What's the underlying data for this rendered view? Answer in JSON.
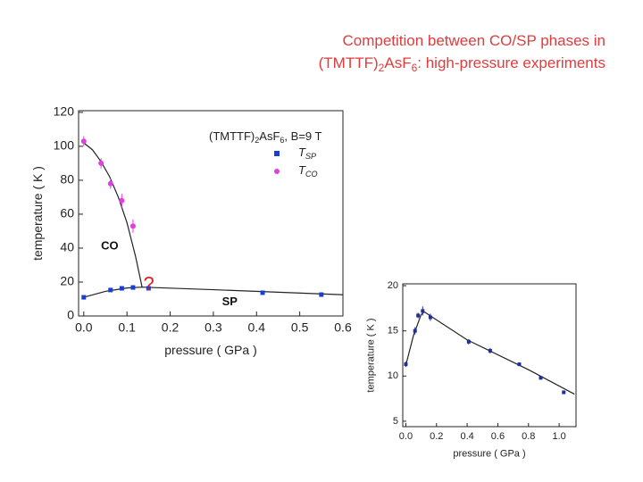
{
  "title": [
    "Competition between CO/SP phases in",
    "(TMTTF)",
    "2",
    "AsF",
    "6",
    ": high-pressure experiments"
  ],
  "chart_data": [
    {
      "type": "scatter",
      "legend_title": [
        "(TMTTF)",
        "2",
        "AsF",
        "6",
        ", B=9 T"
      ],
      "xlabel": "pressure ( GPa )",
      "ylabel": "temperature ( K )",
      "xlim": [
        -0.012,
        0.6
      ],
      "ylim": [
        0,
        121
      ],
      "xticks": [
        {
          "value": 0,
          "label": "0.0"
        },
        0.1,
        0.2,
        0.3,
        0.4,
        0.5,
        0.6
      ],
      "yticks": [
        0,
        20,
        40,
        60,
        80,
        100,
        120
      ],
      "series": [
        {
          "name": "T",
          "name_subscript": "SP",
          "color": "#1a3fd0",
          "marker": "square",
          "x": [
            0.0,
            0.062,
            0.088,
            0.114,
            0.15,
            0.414,
            0.55
          ],
          "values": [
            11,
            15.3,
            16.3,
            16.8,
            16.3,
            13.7,
            12.6
          ],
          "errors": [
            0.6,
            0.6,
            0.6,
            0.6,
            0.6,
            0.6,
            0.6
          ]
        },
        {
          "name": "T",
          "name_subscript": "CO",
          "color": "#e040e0",
          "marker": "circle",
          "x": [
            0.0,
            0.04,
            0.062,
            0.088,
            0.114
          ],
          "values": [
            103,
            90,
            78,
            68,
            53
          ],
          "errors": [
            3,
            3,
            3,
            4,
            4
          ]
        }
      ],
      "fits": [
        {
          "x": [
            0,
            0.02,
            0.04,
            0.06,
            0.08,
            0.1,
            0.12,
            0.135
          ],
          "values": [
            102,
            98,
            91,
            82,
            70,
            55,
            35,
            17
          ]
        },
        {
          "x": [
            0,
            0.05,
            0.1,
            0.135,
            0.3,
            0.6
          ],
          "values": [
            11,
            14.5,
            16.5,
            17,
            15.5,
            12.5
          ]
        }
      ],
      "annotations": [
        "CO",
        "SP",
        "?"
      ]
    },
    {
      "type": "scatter",
      "xlabel": "pressure ( GPa )",
      "ylabel": "temperature ( K )",
      "xlim": [
        -0.02,
        1.11
      ],
      "ylim": [
        4.4,
        20.2
      ],
      "xticks": [
        {
          "value": 0,
          "label": "0.0"
        },
        0.2,
        0.4,
        0.6,
        0.8,
        {
          "value": 1,
          "label": "1.0"
        }
      ],
      "yticks": [
        5,
        10,
        15,
        20
      ],
      "series": [
        {
          "color": "#1f2e9a",
          "marker": "square",
          "x": [
            0,
            0.06,
            0.08,
            0.11,
            0.16,
            0.41,
            0.55,
            0.74,
            0.88,
            1.03
          ],
          "values": [
            11.3,
            15,
            16.7,
            17.2,
            16.5,
            13.8,
            12.8,
            11.3,
            9.8,
            8.2
          ],
          "errors": [
            0.3,
            0.4,
            0.3,
            0.5,
            0.4,
            0.3,
            0.3,
            0.2,
            0.2,
            0.2
          ]
        }
      ],
      "fits": [
        {
          "x": [
            0,
            0.05,
            0.1,
            0.12,
            0.4,
            0.8,
            1.1
          ],
          "values": [
            11.2,
            14.5,
            16.8,
            17.1,
            14,
            10.7,
            8
          ]
        }
      ]
    }
  ]
}
